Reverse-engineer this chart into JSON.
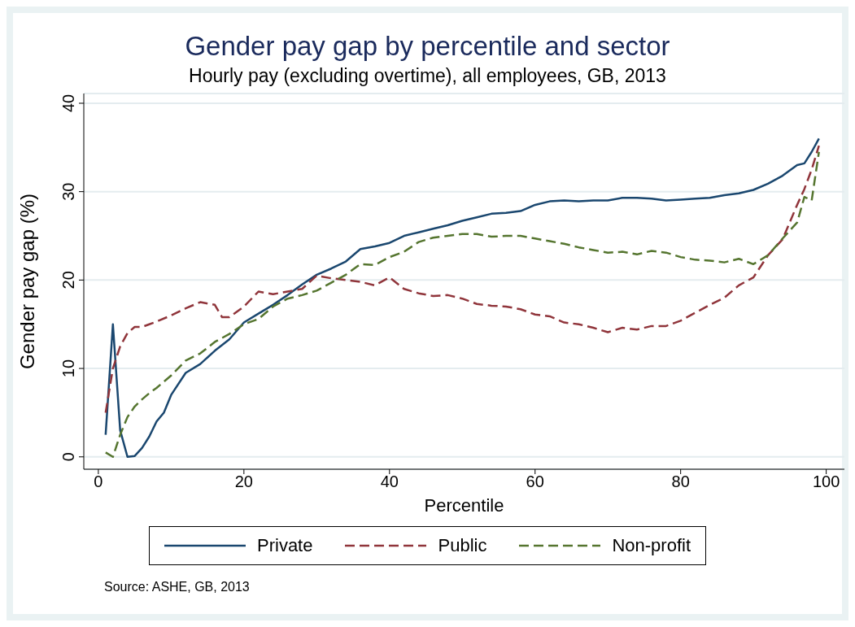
{
  "chart_data": {
    "type": "line",
    "title": "Gender pay gap by percentile and sector",
    "subtitle": "Hourly pay (excluding overtime), all employees, GB, 2013",
    "xlabel": "Percentile",
    "ylabel": "Gender pay gap (%)",
    "xlim": [
      -2,
      102.5
    ],
    "xticks": [
      0,
      20,
      40,
      60,
      80,
      100
    ],
    "ylim": [
      -1.4,
      41.1
    ],
    "yticks": [
      0,
      10,
      20,
      30,
      40
    ],
    "grid": "y",
    "legend": "bottom",
    "marker": "none",
    "annotations": [
      "Source: ASHE, GB, 2013"
    ],
    "series": [
      {
        "name": "Private",
        "color": "#1a476f",
        "line_style": "solid",
        "x": [
          1,
          2,
          3,
          4,
          5,
          6,
          7,
          8,
          9,
          10,
          12,
          14,
          16,
          18,
          20,
          22,
          24,
          26,
          28,
          30,
          32,
          34,
          36,
          38,
          40,
          42,
          44,
          46,
          48,
          50,
          52,
          54,
          56,
          58,
          60,
          62,
          64,
          66,
          68,
          70,
          72,
          74,
          76,
          78,
          80,
          82,
          84,
          86,
          88,
          90,
          92,
          94,
          96,
          97,
          98,
          99
        ],
        "values": [
          2.5,
          15,
          3,
          0,
          0.1,
          1,
          2.3,
          4,
          5,
          7,
          9.5,
          10.5,
          12,
          13.3,
          15.2,
          16.2,
          17.2,
          18.3,
          19.5,
          20.6,
          21.3,
          22.1,
          23.5,
          23.8,
          24.2,
          25,
          25.4,
          25.8,
          26.2,
          26.7,
          27.1,
          27.5,
          27.6,
          27.8,
          28.5,
          28.9,
          29,
          28.9,
          29,
          29,
          29.3,
          29.3,
          29.2,
          29,
          29.1,
          29.2,
          29.3,
          29.6,
          29.8,
          30.2,
          30.9,
          31.8,
          33,
          33.2,
          34.5,
          36
        ]
      },
      {
        "name": "Public",
        "color": "#90353b",
        "line_style": "dashed",
        "x": [
          1,
          2,
          3,
          4,
          5,
          6,
          7,
          8,
          10,
          12,
          14,
          16,
          17,
          18,
          20,
          22,
          24,
          26,
          28,
          30,
          32,
          34,
          36,
          38,
          40,
          42,
          44,
          46,
          48,
          50,
          52,
          54,
          56,
          58,
          60,
          62,
          64,
          66,
          68,
          70,
          72,
          74,
          76,
          78,
          80,
          82,
          84,
          86,
          88,
          90,
          92,
          94,
          96,
          97,
          98,
          99
        ],
        "values": [
          5,
          10,
          12.5,
          14,
          14.7,
          14.7,
          15,
          15.3,
          16,
          16.8,
          17.5,
          17.2,
          15.8,
          15.8,
          17,
          18.7,
          18.4,
          18.7,
          19,
          20.5,
          20.2,
          20,
          19.8,
          19.4,
          20.3,
          19,
          18.5,
          18.2,
          18.3,
          17.9,
          17.3,
          17.1,
          17,
          16.7,
          16.1,
          15.9,
          15.2,
          15,
          14.6,
          14.1,
          14.6,
          14.4,
          14.8,
          14.8,
          15.4,
          16.3,
          17.2,
          18,
          19.4,
          20.3,
          22.8,
          24.6,
          28.5,
          30.3,
          32.5,
          35.2
        ]
      },
      {
        "name": "Non-profit",
        "color": "#55752f",
        "line_style": "dashed",
        "x": [
          1,
          2,
          3,
          4,
          5,
          6,
          7,
          8,
          10,
          12,
          14,
          16,
          18,
          20,
          22,
          24,
          26,
          28,
          30,
          32,
          34,
          36,
          38,
          40,
          42,
          44,
          46,
          48,
          50,
          52,
          54,
          56,
          58,
          60,
          62,
          64,
          66,
          68,
          70,
          72,
          74,
          76,
          78,
          80,
          82,
          84,
          86,
          88,
          90,
          92,
          94,
          96,
          97,
          98,
          99
        ],
        "values": [
          0.5,
          0,
          2.5,
          4.5,
          5.7,
          6.5,
          7.2,
          7.8,
          9.2,
          10.9,
          11.7,
          13,
          13.9,
          15,
          15.6,
          17,
          17.9,
          18.3,
          18.8,
          19.7,
          20.6,
          21.8,
          21.7,
          22.6,
          23.2,
          24.3,
          24.8,
          25,
          25.2,
          25.2,
          24.9,
          25,
          25,
          24.7,
          24.4,
          24.1,
          23.7,
          23.4,
          23.1,
          23.2,
          22.9,
          23.3,
          23.1,
          22.6,
          22.3,
          22.2,
          22,
          22.4,
          21.8,
          22.8,
          24.7,
          26.5,
          29.4,
          29,
          34.5
        ]
      }
    ]
  }
}
